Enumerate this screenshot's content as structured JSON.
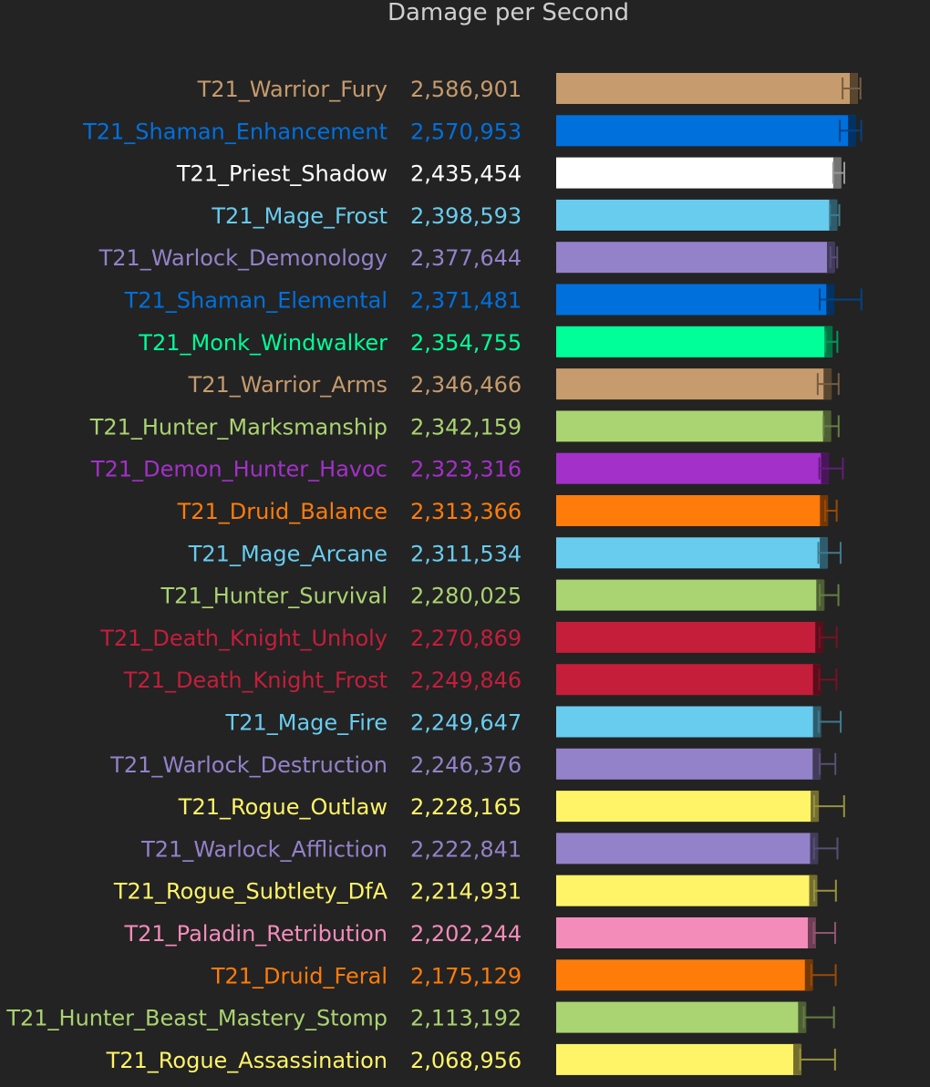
{
  "chart_data": {
    "type": "bar",
    "orientation": "horizontal",
    "title": "Damage per Second",
    "grid": false,
    "series": [
      {
        "values": [
          2586901,
          2570953,
          2435454,
          2398593,
          2377644,
          2371481,
          2354755,
          2346466,
          2342159,
          2323316,
          2313366,
          2311534,
          2280025,
          2270869,
          2249846,
          2249647,
          2246376,
          2228165,
          2222841,
          2214931,
          2202244,
          2175129,
          2113192,
          2068956
        ]
      }
    ],
    "categories": [
      "T21_Warrior_Fury",
      "T21_Shaman_Enhancement",
      "T21_Priest_Shadow",
      "T21_Mage_Frost",
      "T21_Warlock_Demonology",
      "T21_Shaman_Elemental",
      "T21_Monk_Windwalker",
      "T21_Warrior_Arms",
      "T21_Hunter_Marksmanship",
      "T21_Demon_Hunter_Havoc",
      "T21_Druid_Balance",
      "T21_Mage_Arcane",
      "T21_Hunter_Survival",
      "T21_Death_Knight_Unholy",
      "T21_Death_Knight_Frost",
      "T21_Mage_Fire",
      "T21_Warlock_Destruction",
      "T21_Rogue_Outlaw",
      "T21_Warlock_Affliction",
      "T21_Rogue_Subtlety_DfA",
      "T21_Paladin_Retribution",
      "T21_Druid_Feral",
      "T21_Hunter_Beast_Mastery_Stomp",
      "T21_Rogue_Assassination"
    ],
    "value_labels": [
      "2,586,901",
      "2,570,953",
      "2,435,454",
      "2,398,593",
      "2,377,644",
      "2,371,481",
      "2,354,755",
      "2,346,466",
      "2,342,159",
      "2,323,316",
      "2,313,366",
      "2,311,534",
      "2,280,025",
      "2,270,869",
      "2,249,846",
      "2,249,647",
      "2,246,376",
      "2,228,165",
      "2,222,841",
      "2,214,931",
      "2,202,244",
      "2,175,129",
      "2,113,192",
      "2,068,956"
    ],
    "colors": [
      "#c69b6d",
      "#0070dd",
      "#ffffff",
      "#68ccef",
      "#9382c9",
      "#0070dd",
      "#00ff98",
      "#c69b6d",
      "#aad372",
      "#a330c9",
      "#ff7c0a",
      "#68ccef",
      "#aad372",
      "#c41e3b",
      "#c41e3b",
      "#68ccef",
      "#9382c9",
      "#fff468",
      "#9382c9",
      "#fff468",
      "#f48cba",
      "#ff7c0a",
      "#aad372",
      "#fff468"
    ],
    "error_low": [
      2454000,
      2429000,
      2368000,
      2338000,
      2343000,
      2244000,
      2298000,
      2226000,
      2280000,
      2241000,
      2294000,
      2232000,
      2245000,
      2243000,
      2239000,
      2234000,
      2244000,
      2193000,
      2192000,
      2194000,
      2190000,
      2167000,
      2098000,
      2065000
    ],
    "error_high": [
      2618000,
      2626000,
      2470000,
      2424000,
      2405000,
      2627000,
      2406000,
      2418000,
      2418000,
      2457000,
      2400000,
      2436000,
      2416000,
      2400000,
      2397000,
      2437000,
      2388000,
      2468000,
      2407000,
      2393000,
      2386000,
      2391000,
      2375000,
      2385000
    ]
  }
}
